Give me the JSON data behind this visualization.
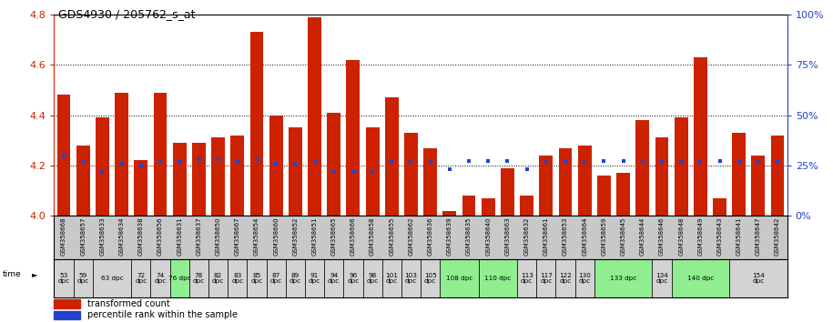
{
  "title": "GDS4930 / 205762_s_at",
  "samples": [
    "GSM358668",
    "GSM358657",
    "GSM358633",
    "GSM358634",
    "GSM358638",
    "GSM358656",
    "GSM358631",
    "GSM358637",
    "GSM358650",
    "GSM358667",
    "GSM358654",
    "GSM358660",
    "GSM358652",
    "GSM358651",
    "GSM358665",
    "GSM358666",
    "GSM358658",
    "GSM358655",
    "GSM358662",
    "GSM358636",
    "GSM358639",
    "GSM358635",
    "GSM358640",
    "GSM358663",
    "GSM358632",
    "GSM358661",
    "GSM358653",
    "GSM358664",
    "GSM358659",
    "GSM358645",
    "GSM358644",
    "GSM358646",
    "GSM358648",
    "GSM358649",
    "GSM358643",
    "GSM358641",
    "GSM358647",
    "GSM358642"
  ],
  "bar_values": [
    4.48,
    4.28,
    4.39,
    4.49,
    4.22,
    4.49,
    4.29,
    4.29,
    4.31,
    4.32,
    4.73,
    4.4,
    4.35,
    4.79,
    4.41,
    4.62,
    4.35,
    4.47,
    4.33,
    4.27,
    4.02,
    4.08,
    4.07,
    4.19,
    4.08,
    4.24,
    4.27,
    4.28,
    4.16,
    4.17,
    4.38,
    4.31,
    4.39,
    4.63,
    4.07,
    4.33,
    4.24,
    4.32
  ],
  "percentile_values": [
    30,
    27,
    22,
    26,
    25,
    27,
    27,
    28,
    28,
    27,
    28,
    26,
    26,
    27,
    22,
    22,
    22,
    27,
    27,
    27,
    23,
    27,
    27,
    27,
    23,
    27,
    27,
    27,
    27,
    27,
    27,
    27,
    27,
    27,
    27,
    27,
    27,
    27
  ],
  "time_groups": [
    {
      "label": "53\ndpc",
      "start": 0,
      "end": 1,
      "color": "#d3d3d3"
    },
    {
      "label": "59\ndpc",
      "start": 1,
      "end": 2,
      "color": "#d3d3d3"
    },
    {
      "label": "63 dpc",
      "start": 2,
      "end": 4,
      "color": "#d3d3d3"
    },
    {
      "label": "72\ndpc",
      "start": 4,
      "end": 5,
      "color": "#d3d3d3"
    },
    {
      "label": "74\ndpc",
      "start": 5,
      "end": 6,
      "color": "#d3d3d3"
    },
    {
      "label": "76 dpc",
      "start": 6,
      "end": 7,
      "color": "#90ee90"
    },
    {
      "label": "78\ndpc",
      "start": 7,
      "end": 8,
      "color": "#d3d3d3"
    },
    {
      "label": "82\ndpc",
      "start": 8,
      "end": 9,
      "color": "#d3d3d3"
    },
    {
      "label": "83\ndpc",
      "start": 9,
      "end": 10,
      "color": "#d3d3d3"
    },
    {
      "label": "85\ndpc",
      "start": 10,
      "end": 11,
      "color": "#d3d3d3"
    },
    {
      "label": "87\ndpc",
      "start": 11,
      "end": 12,
      "color": "#d3d3d3"
    },
    {
      "label": "89\ndpc",
      "start": 12,
      "end": 13,
      "color": "#d3d3d3"
    },
    {
      "label": "91\ndpc",
      "start": 13,
      "end": 14,
      "color": "#d3d3d3"
    },
    {
      "label": "94\ndpc",
      "start": 14,
      "end": 15,
      "color": "#d3d3d3"
    },
    {
      "label": "96\ndpc",
      "start": 15,
      "end": 16,
      "color": "#d3d3d3"
    },
    {
      "label": "98\ndpc",
      "start": 16,
      "end": 17,
      "color": "#d3d3d3"
    },
    {
      "label": "101\ndpc",
      "start": 17,
      "end": 18,
      "color": "#d3d3d3"
    },
    {
      "label": "103\ndpc",
      "start": 18,
      "end": 19,
      "color": "#d3d3d3"
    },
    {
      "label": "105\ndpc",
      "start": 19,
      "end": 20,
      "color": "#d3d3d3"
    },
    {
      "label": "108 dpc",
      "start": 20,
      "end": 22,
      "color": "#90ee90"
    },
    {
      "label": "110 dpc",
      "start": 22,
      "end": 24,
      "color": "#90ee90"
    },
    {
      "label": "113\ndpc",
      "start": 24,
      "end": 25,
      "color": "#d3d3d3"
    },
    {
      "label": "117\ndpc",
      "start": 25,
      "end": 26,
      "color": "#d3d3d3"
    },
    {
      "label": "122\ndpc",
      "start": 26,
      "end": 27,
      "color": "#d3d3d3"
    },
    {
      "label": "130\ndpc",
      "start": 27,
      "end": 28,
      "color": "#d3d3d3"
    },
    {
      "label": "133 dpc",
      "start": 28,
      "end": 31,
      "color": "#90ee90"
    },
    {
      "label": "134\ndpc",
      "start": 31,
      "end": 32,
      "color": "#d3d3d3"
    },
    {
      "label": "140 dpc",
      "start": 32,
      "end": 35,
      "color": "#90ee90"
    },
    {
      "label": "154\ndpc",
      "start": 35,
      "end": 38,
      "color": "#d3d3d3"
    }
  ],
  "ylim": [
    4.0,
    4.8
  ],
  "yticks_left": [
    4.0,
    4.2,
    4.4,
    4.6,
    4.8
  ],
  "yticks_right": [
    0,
    25,
    50,
    75,
    100
  ],
  "bar_color": "#cc2200",
  "percentile_color": "#2244cc",
  "base_value": 4.0,
  "grid_lines": [
    4.2,
    4.4,
    4.6
  ],
  "bg_color": "#c8c8c8"
}
